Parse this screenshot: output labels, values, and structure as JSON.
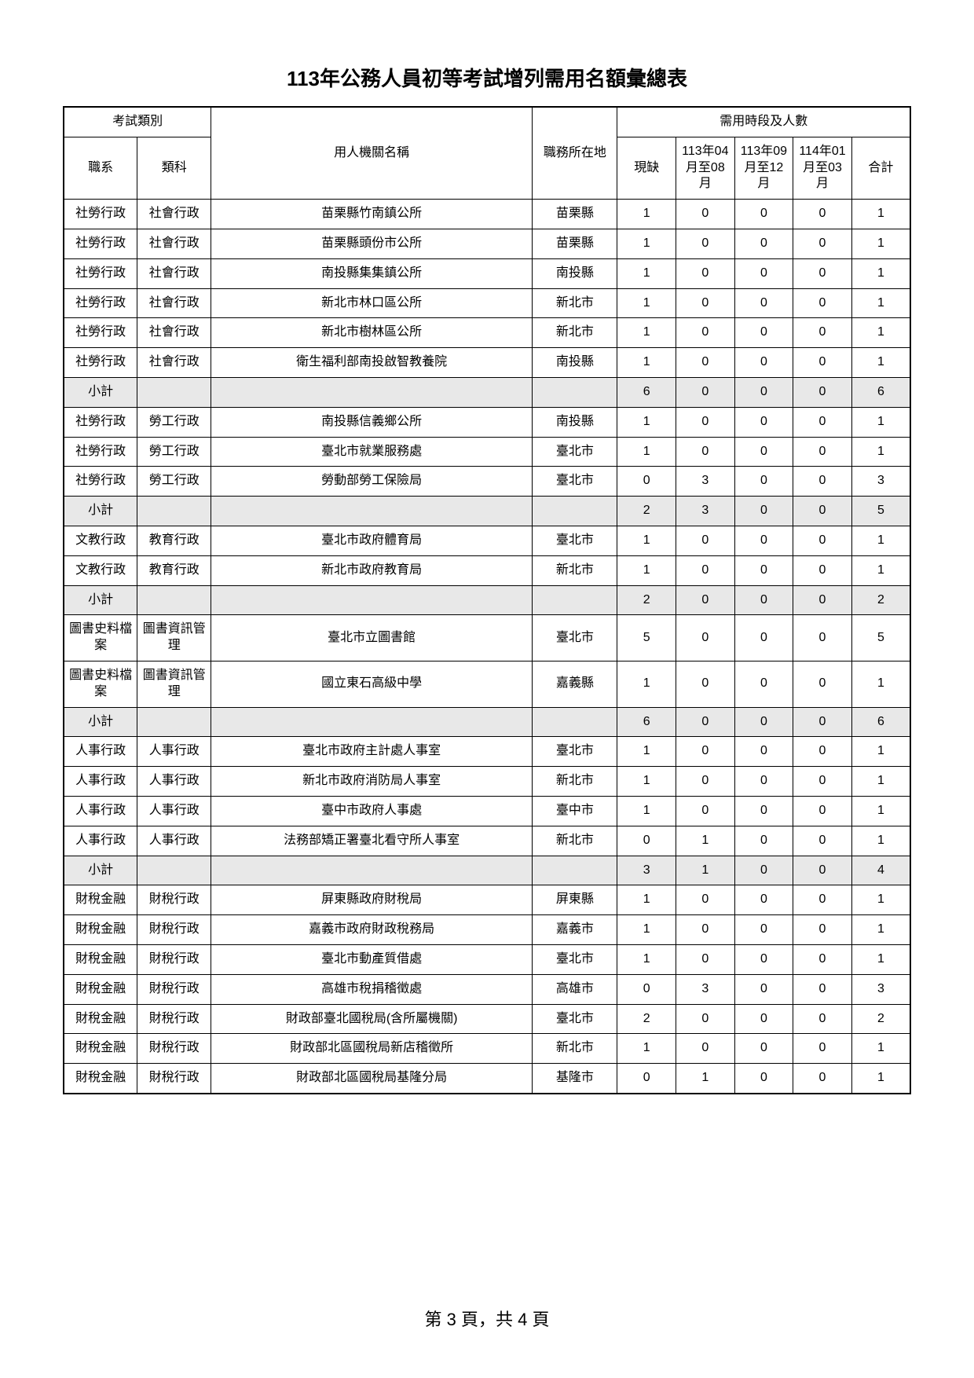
{
  "title": "113年公務人員初等考試增列需用名額彙總表",
  "headers": {
    "exam_type": "考試類別",
    "series": "職系",
    "category": "類科",
    "agency": "用人機關名稱",
    "location": "職務所在地",
    "period_group": "需用時段及人數",
    "current": "現缺",
    "p1": "113年04月至08月",
    "p2": "113年09月至12月",
    "p3": "114年01月至03月",
    "total": "合計"
  },
  "subtotal_label": "小計",
  "rows": [
    {
      "type": "data",
      "series": "社勞行政",
      "category": "社會行政",
      "agency": "苗栗縣竹南鎮公所",
      "location": "苗栗縣",
      "c": 1,
      "p1": 0,
      "p2": 0,
      "p3": 0,
      "t": 1
    },
    {
      "type": "data",
      "series": "社勞行政",
      "category": "社會行政",
      "agency": "苗栗縣頭份市公所",
      "location": "苗栗縣",
      "c": 1,
      "p1": 0,
      "p2": 0,
      "p3": 0,
      "t": 1
    },
    {
      "type": "data",
      "series": "社勞行政",
      "category": "社會行政",
      "agency": "南投縣集集鎮公所",
      "location": "南投縣",
      "c": 1,
      "p1": 0,
      "p2": 0,
      "p3": 0,
      "t": 1
    },
    {
      "type": "data",
      "series": "社勞行政",
      "category": "社會行政",
      "agency": "新北市林口區公所",
      "location": "新北市",
      "c": 1,
      "p1": 0,
      "p2": 0,
      "p3": 0,
      "t": 1
    },
    {
      "type": "data",
      "series": "社勞行政",
      "category": "社會行政",
      "agency": "新北市樹林區公所",
      "location": "新北市",
      "c": 1,
      "p1": 0,
      "p2": 0,
      "p3": 0,
      "t": 1
    },
    {
      "type": "data",
      "series": "社勞行政",
      "category": "社會行政",
      "agency": "衛生福利部南投啟智教養院",
      "location": "南投縣",
      "c": 1,
      "p1": 0,
      "p2": 0,
      "p3": 0,
      "t": 1
    },
    {
      "type": "subtotal",
      "c": 6,
      "p1": 0,
      "p2": 0,
      "p3": 0,
      "t": 6
    },
    {
      "type": "data",
      "series": "社勞行政",
      "category": "勞工行政",
      "agency": "南投縣信義鄉公所",
      "location": "南投縣",
      "c": 1,
      "p1": 0,
      "p2": 0,
      "p3": 0,
      "t": 1
    },
    {
      "type": "data",
      "series": "社勞行政",
      "category": "勞工行政",
      "agency": "臺北市就業服務處",
      "location": "臺北市",
      "c": 1,
      "p1": 0,
      "p2": 0,
      "p3": 0,
      "t": 1
    },
    {
      "type": "data",
      "series": "社勞行政",
      "category": "勞工行政",
      "agency": "勞動部勞工保險局",
      "location": "臺北市",
      "c": 0,
      "p1": 3,
      "p2": 0,
      "p3": 0,
      "t": 3
    },
    {
      "type": "subtotal",
      "c": 2,
      "p1": 3,
      "p2": 0,
      "p3": 0,
      "t": 5
    },
    {
      "type": "data",
      "series": "文教行政",
      "category": "教育行政",
      "agency": "臺北市政府體育局",
      "location": "臺北市",
      "c": 1,
      "p1": 0,
      "p2": 0,
      "p3": 0,
      "t": 1
    },
    {
      "type": "data",
      "series": "文教行政",
      "category": "教育行政",
      "agency": "新北市政府教育局",
      "location": "新北市",
      "c": 1,
      "p1": 0,
      "p2": 0,
      "p3": 0,
      "t": 1
    },
    {
      "type": "subtotal",
      "c": 2,
      "p1": 0,
      "p2": 0,
      "p3": 0,
      "t": 2
    },
    {
      "type": "data",
      "series": "圖書史料檔案",
      "category": "圖書資訊管理",
      "agency": "臺北市立圖書館",
      "location": "臺北市",
      "c": 5,
      "p1": 0,
      "p2": 0,
      "p3": 0,
      "t": 5
    },
    {
      "type": "data",
      "series": "圖書史料檔案",
      "category": "圖書資訊管理",
      "agency": "國立東石高級中學",
      "location": "嘉義縣",
      "c": 1,
      "p1": 0,
      "p2": 0,
      "p3": 0,
      "t": 1
    },
    {
      "type": "subtotal",
      "c": 6,
      "p1": 0,
      "p2": 0,
      "p3": 0,
      "t": 6
    },
    {
      "type": "data",
      "series": "人事行政",
      "category": "人事行政",
      "agency": "臺北市政府主計處人事室",
      "location": "臺北市",
      "c": 1,
      "p1": 0,
      "p2": 0,
      "p3": 0,
      "t": 1
    },
    {
      "type": "data",
      "series": "人事行政",
      "category": "人事行政",
      "agency": "新北市政府消防局人事室",
      "location": "新北市",
      "c": 1,
      "p1": 0,
      "p2": 0,
      "p3": 0,
      "t": 1
    },
    {
      "type": "data",
      "series": "人事行政",
      "category": "人事行政",
      "agency": "臺中市政府人事處",
      "location": "臺中市",
      "c": 1,
      "p1": 0,
      "p2": 0,
      "p3": 0,
      "t": 1
    },
    {
      "type": "data",
      "series": "人事行政",
      "category": "人事行政",
      "agency": "法務部矯正署臺北看守所人事室",
      "location": "新北市",
      "c": 0,
      "p1": 1,
      "p2": 0,
      "p3": 0,
      "t": 1
    },
    {
      "type": "subtotal",
      "c": 3,
      "p1": 1,
      "p2": 0,
      "p3": 0,
      "t": 4
    },
    {
      "type": "data",
      "series": "財稅金融",
      "category": "財稅行政",
      "agency": "屏東縣政府財稅局",
      "location": "屏東縣",
      "c": 1,
      "p1": 0,
      "p2": 0,
      "p3": 0,
      "t": 1
    },
    {
      "type": "data",
      "series": "財稅金融",
      "category": "財稅行政",
      "agency": "嘉義市政府財政稅務局",
      "location": "嘉義市",
      "c": 1,
      "p1": 0,
      "p2": 0,
      "p3": 0,
      "t": 1
    },
    {
      "type": "data",
      "series": "財稅金融",
      "category": "財稅行政",
      "agency": "臺北市動產質借處",
      "location": "臺北市",
      "c": 1,
      "p1": 0,
      "p2": 0,
      "p3": 0,
      "t": 1
    },
    {
      "type": "data",
      "series": "財稅金融",
      "category": "財稅行政",
      "agency": "高雄市稅捐稽徵處",
      "location": "高雄市",
      "c": 0,
      "p1": 3,
      "p2": 0,
      "p3": 0,
      "t": 3
    },
    {
      "type": "data",
      "series": "財稅金融",
      "category": "財稅行政",
      "agency": "財政部臺北國稅局(含所屬機關)",
      "location": "臺北市",
      "c": 2,
      "p1": 0,
      "p2": 0,
      "p3": 0,
      "t": 2
    },
    {
      "type": "data",
      "series": "財稅金融",
      "category": "財稅行政",
      "agency": "財政部北區國稅局新店稽徵所",
      "location": "新北市",
      "c": 1,
      "p1": 0,
      "p2": 0,
      "p3": 0,
      "t": 1
    },
    {
      "type": "data",
      "series": "財稅金融",
      "category": "財稅行政",
      "agency": "財政部北區國稅局基隆分局",
      "location": "基隆市",
      "c": 0,
      "p1": 1,
      "p2": 0,
      "p3": 0,
      "t": 1
    }
  ],
  "footer": "第 3 頁，共 4 頁"
}
